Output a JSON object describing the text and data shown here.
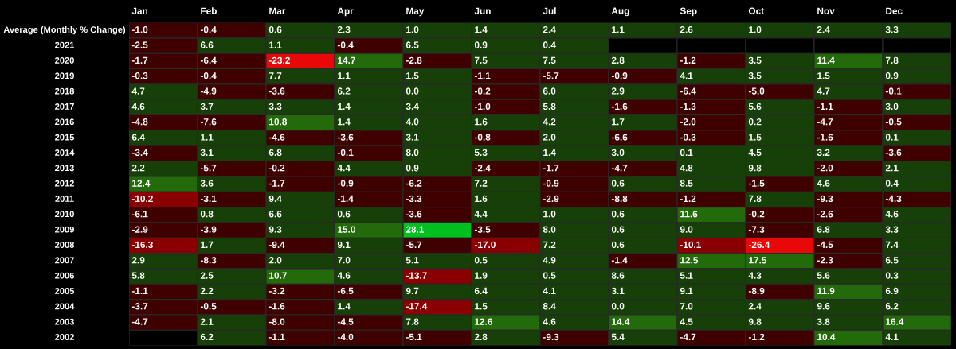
{
  "chart_data": {
    "type": "heatmap",
    "categories": [
      "Jan",
      "Feb",
      "Mar",
      "Apr",
      "May",
      "Jun",
      "Jul",
      "Aug",
      "Sep",
      "Oct",
      "Nov",
      "Dec"
    ],
    "y_categories": [
      "Average (Monthly % Change)",
      "2021",
      "2020",
      "2019",
      "2018",
      "2017",
      "2016",
      "2015",
      "2014",
      "2013",
      "2012",
      "2011",
      "2010",
      "2009",
      "2008",
      "2007",
      "2006",
      "2005",
      "2004",
      "2003",
      "2002"
    ],
    "cells": [
      [
        -1.0,
        -0.4,
        0.6,
        2.3,
        1.0,
        1.4,
        2.4,
        1.1,
        2.6,
        1.0,
        2.4,
        3.3
      ],
      [
        -2.5,
        6.6,
        1.1,
        -0.4,
        6.5,
        0.9,
        0.4,
        null,
        null,
        null,
        null,
        null
      ],
      [
        -1.7,
        -6.4,
        -23.2,
        14.7,
        -2.8,
        7.5,
        7.5,
        2.8,
        -1.2,
        3.5,
        11.4,
        7.8
      ],
      [
        -0.3,
        -0.4,
        7.7,
        1.1,
        1.5,
        -1.1,
        -5.7,
        -0.9,
        4.1,
        3.5,
        1.5,
        0.9
      ],
      [
        4.7,
        -4.9,
        -3.6,
        6.2,
        0.0,
        -0.2,
        6.0,
        2.9,
        -6.4,
        -5.0,
        4.7,
        -0.1
      ],
      [
        4.6,
        3.7,
        3.3,
        1.4,
        3.4,
        -1.0,
        5.8,
        -1.6,
        -1.3,
        5.6,
        -1.1,
        3.0
      ],
      [
        -4.8,
        -7.6,
        10.8,
        1.4,
        4.0,
        1.6,
        4.2,
        1.7,
        -2.0,
        0.2,
        -4.7,
        -0.5
      ],
      [
        6.4,
        1.1,
        -4.6,
        -3.6,
        3.1,
        -0.8,
        2.0,
        -6.6,
        -0.3,
        1.5,
        -1.6,
        0.1
      ],
      [
        -3.4,
        3.1,
        6.8,
        -0.1,
        8.0,
        5.3,
        1.4,
        3.0,
        0.1,
        4.5,
        3.2,
        -3.6
      ],
      [
        2.2,
        -5.7,
        -0.2,
        4.4,
        0.9,
        -2.4,
        -1.7,
        -4.7,
        4.8,
        9.8,
        -2.0,
        2.1
      ],
      [
        12.4,
        3.6,
        -1.7,
        -0.9,
        -6.2,
        7.2,
        -0.9,
        0.6,
        8.5,
        -1.5,
        4.6,
        0.4
      ],
      [
        -10.2,
        -3.1,
        9.4,
        -1.4,
        -3.3,
        1.6,
        -2.9,
        -8.8,
        -1.2,
        7.8,
        -9.3,
        -4.3
      ],
      [
        -6.1,
        0.8,
        6.6,
        0.6,
        -3.6,
        4.4,
        1.0,
        0.6,
        11.6,
        -0.2,
        -2.6,
        4.6
      ],
      [
        -2.9,
        -3.9,
        9.3,
        15.0,
        28.1,
        -3.5,
        8.0,
        0.6,
        9.0,
        -7.3,
        6.8,
        3.3
      ],
      [
        -16.3,
        1.7,
        -9.4,
        9.1,
        -5.7,
        -17.0,
        7.2,
        0.6,
        -10.1,
        -26.4,
        -4.5,
        7.4
      ],
      [
        2.9,
        -8.3,
        2.0,
        7.0,
        5.1,
        0.5,
        4.9,
        -1.4,
        12.5,
        17.5,
        -2.3,
        6.5
      ],
      [
        5.8,
        2.5,
        10.7,
        4.6,
        -13.7,
        1.9,
        0.5,
        8.6,
        5.1,
        4.3,
        5.6,
        0.3
      ],
      [
        -1.1,
        2.2,
        -3.2,
        -6.5,
        9.7,
        6.4,
        4.1,
        3.1,
        9.1,
        -8.9,
        11.9,
        6.9
      ],
      [
        -3.7,
        -0.5,
        -1.6,
        1.4,
        -17.4,
        1.5,
        8.4,
        0.0,
        7.0,
        2.4,
        9.6,
        6.2
      ],
      [
        -4.7,
        2.1,
        -8.0,
        -4.5,
        7.8,
        12.6,
        4.6,
        14.4,
        4.5,
        9.8,
        3.8,
        16.4
      ],
      [
        null,
        6.2,
        -1.1,
        -4.0,
        -5.1,
        2.8,
        -9.3,
        5.4,
        -4.7,
        -1.2,
        10.4,
        4.1
      ]
    ],
    "cell_labels": [
      [
        "-1.0",
        "-0.4",
        "0.6",
        "2.3",
        "1.0",
        "1.4",
        "2.4",
        "1.1",
        "2.6",
        "1.0",
        "2.4",
        "3.3"
      ],
      [
        "-2.5",
        "6.6",
        "1.1",
        "-0.4",
        "6.5",
        "0.9",
        "0.4",
        null,
        null,
        null,
        null,
        null
      ],
      [
        "-1.7",
        "-6.4",
        "-23.2",
        "14.7",
        "-2.8",
        "7.5",
        "7.5",
        "2.8",
        "-1.2",
        "3.5",
        "11.4",
        "7.8"
      ],
      [
        "-0.3",
        "-0.4",
        "7.7",
        "1.1",
        "1.5",
        "-1.1",
        "-5.7",
        "-0.9",
        "4.1",
        "3.5",
        "1.5",
        "0.9"
      ],
      [
        "4.7",
        "-4.9",
        "-3.6",
        "6.2",
        "0.0",
        "-0.2",
        "6.0",
        "2.9",
        "-6.4",
        "-5.0",
        "4.7",
        "-0.1"
      ],
      [
        "4.6",
        "3.7",
        "3.3",
        "1.4",
        "3.4",
        "-1.0",
        "5.8",
        "-1.6",
        "-1.3",
        "5.6",
        "-1.1",
        "3.0"
      ],
      [
        "-4.8",
        "-7.6",
        "10.8",
        "1.4",
        "4.0",
        "1.6",
        "4.2",
        "1.7",
        "-2.0",
        "0.2",
        "-4.7",
        "-0.5"
      ],
      [
        "6.4",
        "1.1",
        "-4.6",
        "-3.6",
        "3.1",
        "-0.8",
        "2.0",
        "-6.6",
        "-0.3",
        "1.5",
        "-1.6",
        "0.1"
      ],
      [
        "-3.4",
        "3.1",
        "6.8",
        "-0.1",
        "8.0",
        "5.3",
        "1.4",
        "3.0",
        "0.1",
        "4.5",
        "3.2",
        "-3.6"
      ],
      [
        "2.2",
        "-5.7",
        "-0.2",
        "4.4",
        "0.9",
        "-2.4",
        "-1.7",
        "-4.7",
        "4.8",
        "9.8",
        "-2.0",
        "2.1"
      ],
      [
        "12.4",
        "3.6",
        "-1.7",
        "-0.9",
        "-6.2",
        "7.2",
        "-0.9",
        "0.6",
        "8.5",
        "-1.5",
        "4.6",
        "0.4"
      ],
      [
        "-10.2",
        "-3.1",
        "9.4",
        "-1.4",
        "-3.3",
        "1.6",
        "-2.9",
        "-8.8",
        "-1.2",
        "7.8",
        "-9.3",
        "-4.3"
      ],
      [
        "-6.1",
        "0.8",
        "6.6",
        "0.6",
        "-3.6",
        "4.4",
        "1.0",
        "0.6",
        "11.6",
        "-0.2",
        "-2.6",
        "4.6"
      ],
      [
        "-2.9",
        "-3.9",
        "9.3",
        "15.0",
        "28.1",
        "-3.5",
        "8.0",
        "0.6",
        "9.0",
        "-7.3",
        "6.8",
        "3.3"
      ],
      [
        "-16.3",
        "1.7",
        "-9.4",
        "9.1",
        "-5.7",
        "-17.0",
        "7.2",
        "0.6",
        "-10.1",
        "-26.4",
        "-4.5",
        "7.4"
      ],
      [
        "2.9",
        "-8.3",
        "2.0",
        "7.0",
        "5.1",
        "0.5",
        "4.9",
        "-1.4",
        "12.5",
        "17.5",
        "-2.3",
        "6.5"
      ],
      [
        "5.8",
        "2.5",
        "10.7",
        "4.6",
        "-13.7",
        "1.9",
        "0.5",
        "8.6",
        "5.1",
        "4.3",
        "5.6",
        "0.3"
      ],
      [
        "-1.1",
        "2.2",
        "-3.2",
        "-6.5",
        "9.7",
        "6.4",
        "4.1",
        "3.1",
        "9.1",
        "-8.9",
        "11.9",
        "6.9"
      ],
      [
        "-3.7",
        "-0.5",
        "-1.6",
        "1.4",
        "-17.4",
        "1.5",
        "8.4",
        "0.0",
        "7.0",
        "2.4",
        "9.6",
        "6.2"
      ],
      [
        "-4.7",
        "2.1",
        "-8.0",
        "-4.5",
        "7.8",
        "12.6",
        "4.6",
        "14.4",
        "4.5",
        "9.8",
        "3.8",
        "16.4"
      ],
      [
        null,
        "6.2",
        "-1.1",
        "-4.0",
        "-5.1",
        "2.8",
        "-9.3",
        "5.4",
        "-4.7",
        "-1.2",
        "10.4",
        "4.1"
      ]
    ]
  }
}
